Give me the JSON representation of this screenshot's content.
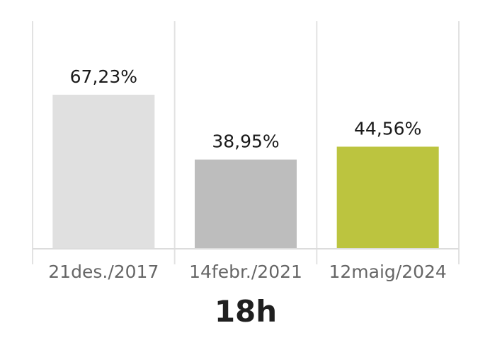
{
  "chart_data": {
    "type": "bar",
    "categories": [
      "21des./2017",
      "14febr./2021",
      "12maig/2024"
    ],
    "values": [
      67.23,
      38.95,
      44.56
    ],
    "value_labels": [
      "67,23%",
      "38,95%",
      "44,56%"
    ],
    "colors": [
      "#e0e0e0",
      "#bdbdbd",
      "#bcc43f"
    ],
    "title": "",
    "xlabel": "18h",
    "ylabel": "",
    "ylim": [
      0,
      100
    ],
    "grid": true,
    "legend": "none"
  }
}
